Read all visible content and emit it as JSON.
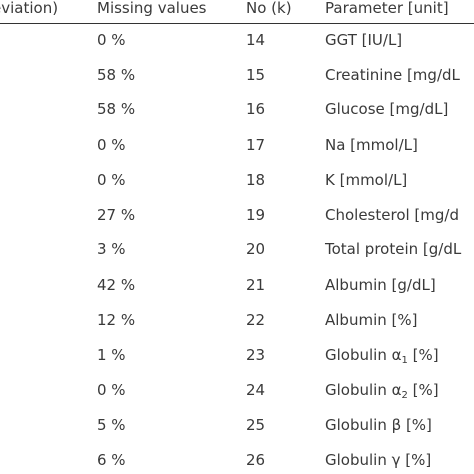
{
  "table": {
    "headers": [
      "eviation)",
      "Missing values",
      "No (k)",
      "Parameter [unit]"
    ],
    "rows": [
      {
        "missing": "0 %",
        "no": "14",
        "param": "GGT [IU/L]"
      },
      {
        "missing": "58 %",
        "no": "15",
        "param": "Creatinine [mg/dL"
      },
      {
        "missing": "58 %",
        "no": "16",
        "param": "Glucose [mg/dL]"
      },
      {
        "missing": "0 %",
        "no": "17",
        "param": "Na [mmol/L]"
      },
      {
        "missing": "0 %",
        "no": "18",
        "param": "K [mmol/L]"
      },
      {
        "missing": "27 %",
        "no": "19",
        "param": "Cholesterol [mg/d"
      },
      {
        "missing": "3 %",
        "no": "20",
        "param": "Total protein [g/dL"
      },
      {
        "missing": "42 %",
        "no": "21",
        "param": "Albumin [g/dL]"
      },
      {
        "missing": "12 %",
        "no": "22",
        "param": "Albumin [%]"
      },
      {
        "missing": "1 %",
        "no": "23",
        "param": "Globulin α",
        "param_sub": "1",
        "param_tail": " [%]"
      },
      {
        "missing": "0 %",
        "no": "24",
        "param": "Globulin α",
        "param_sub": "2",
        "param_tail": " [%]"
      },
      {
        "missing": "5 %",
        "no": "25",
        "param": "Globulin β [%]"
      },
      {
        "missing": "6 %",
        "no": "26",
        "param": "Globulin γ [%]"
      }
    ]
  }
}
